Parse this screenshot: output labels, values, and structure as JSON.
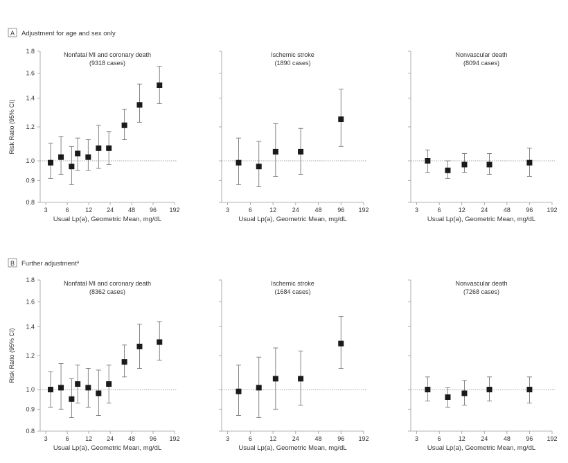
{
  "colors": {
    "marker": "#1a1a1a",
    "axis": "#9a9a9a",
    "errorbar": "#777777",
    "text": "#333333",
    "refline": "#888888"
  },
  "figure": {
    "y_axis_label": "Risk Ratio (95% CI)",
    "x_axis_label": "Usual Lp(a), Geometric Mean, mg/dL",
    "y_ticks": [
      "1.8",
      "1.6",
      "1.4",
      "1.2",
      "1.0",
      "0.9",
      "0.8"
    ],
    "x_ticks": [
      "3",
      "6",
      "12",
      "24",
      "48",
      "96",
      "192"
    ]
  },
  "chart_data": [
    {
      "type": "scatter",
      "panel_letter": "A",
      "panel_title": "Adjustment for age and sex only",
      "title": "Nonfatal MI and coronary death",
      "subtitle": "(9318 cases)",
      "x_scale": "log2",
      "y_scale": "log",
      "xlim": [
        2.5,
        192
      ],
      "ylim": [
        0.8,
        1.8
      ],
      "reference_y": 1.0,
      "points": [
        {
          "x": 3.5,
          "y": 0.99,
          "lo": 0.91,
          "hi": 1.1
        },
        {
          "x": 4.9,
          "y": 1.02,
          "lo": 0.93,
          "hi": 1.14
        },
        {
          "x": 6.9,
          "y": 0.97,
          "lo": 0.88,
          "hi": 1.08
        },
        {
          "x": 8.4,
          "y": 1.04,
          "lo": 0.95,
          "hi": 1.13
        },
        {
          "x": 11.8,
          "y": 1.02,
          "lo": 0.95,
          "hi": 1.12
        },
        {
          "x": 16.5,
          "y": 1.07,
          "lo": 0.96,
          "hi": 1.21
        },
        {
          "x": 23.0,
          "y": 1.07,
          "lo": 0.98,
          "hi": 1.17
        },
        {
          "x": 38.0,
          "y": 1.21,
          "lo": 1.12,
          "hi": 1.32
        },
        {
          "x": 62.0,
          "y": 1.35,
          "lo": 1.23,
          "hi": 1.51
        },
        {
          "x": 118.0,
          "y": 1.5,
          "lo": 1.36,
          "hi": 1.66
        }
      ]
    },
    {
      "type": "scatter",
      "panel_letter": "A",
      "title": "Ischemic stroke",
      "subtitle": "(1890 cases)",
      "x_scale": "log2",
      "y_scale": "log",
      "xlim": [
        2.5,
        192
      ],
      "ylim": [
        0.8,
        1.8
      ],
      "reference_y": 1.0,
      "points": [
        {
          "x": 4.2,
          "y": 0.99,
          "lo": 0.88,
          "hi": 1.13
        },
        {
          "x": 7.8,
          "y": 0.97,
          "lo": 0.87,
          "hi": 1.11
        },
        {
          "x": 13.0,
          "y": 1.05,
          "lo": 0.92,
          "hi": 1.22
        },
        {
          "x": 28.0,
          "y": 1.05,
          "lo": 0.93,
          "hi": 1.19
        },
        {
          "x": 96.0,
          "y": 1.25,
          "lo": 1.08,
          "hi": 1.47
        }
      ]
    },
    {
      "type": "scatter",
      "panel_letter": "A",
      "title": "Nonvascular death",
      "subtitle": "(8094 cases)",
      "x_scale": "log2",
      "y_scale": "log",
      "xlim": [
        2.5,
        192
      ],
      "ylim": [
        0.8,
        1.8
      ],
      "reference_y": 1.0,
      "points": [
        {
          "x": 4.2,
          "y": 1.0,
          "lo": 0.94,
          "hi": 1.06
        },
        {
          "x": 7.8,
          "y": 0.95,
          "lo": 0.91,
          "hi": 1.0
        },
        {
          "x": 13.0,
          "y": 0.98,
          "lo": 0.94,
          "hi": 1.04
        },
        {
          "x": 28.0,
          "y": 0.98,
          "lo": 0.93,
          "hi": 1.04
        },
        {
          "x": 96.0,
          "y": 0.99,
          "lo": 0.92,
          "hi": 1.07
        }
      ]
    },
    {
      "type": "scatter",
      "panel_letter": "B",
      "panel_title": "Further adjustment",
      "title": "Nonfatal MI and coronary death",
      "subtitle": "(8362 cases)",
      "x_scale": "log2",
      "y_scale": "log",
      "xlim": [
        2.5,
        192
      ],
      "ylim": [
        0.8,
        1.8
      ],
      "reference_y": 1.0,
      "points": [
        {
          "x": 3.5,
          "y": 1.0,
          "lo": 0.91,
          "hi": 1.1
        },
        {
          "x": 4.9,
          "y": 1.01,
          "lo": 0.9,
          "hi": 1.15
        },
        {
          "x": 6.9,
          "y": 0.95,
          "lo": 0.86,
          "hi": 1.06
        },
        {
          "x": 8.4,
          "y": 1.03,
          "lo": 0.93,
          "hi": 1.14
        },
        {
          "x": 11.8,
          "y": 1.01,
          "lo": 0.91,
          "hi": 1.12
        },
        {
          "x": 16.5,
          "y": 0.98,
          "lo": 0.87,
          "hi": 1.11
        },
        {
          "x": 23.0,
          "y": 1.03,
          "lo": 0.93,
          "hi": 1.14
        },
        {
          "x": 38.0,
          "y": 1.16,
          "lo": 1.07,
          "hi": 1.27
        },
        {
          "x": 62.0,
          "y": 1.26,
          "lo": 1.12,
          "hi": 1.42
        },
        {
          "x": 118.0,
          "y": 1.29,
          "lo": 1.17,
          "hi": 1.44
        }
      ]
    },
    {
      "type": "scatter",
      "panel_letter": "B",
      "title": "Ischemic stroke",
      "subtitle": "(1684 cases)",
      "x_scale": "log2",
      "y_scale": "log",
      "xlim": [
        2.5,
        192
      ],
      "ylim": [
        0.8,
        1.8
      ],
      "reference_y": 1.0,
      "points": [
        {
          "x": 4.2,
          "y": 0.99,
          "lo": 0.87,
          "hi": 1.14
        },
        {
          "x": 7.8,
          "y": 1.01,
          "lo": 0.86,
          "hi": 1.19
        },
        {
          "x": 13.0,
          "y": 1.06,
          "lo": 0.9,
          "hi": 1.25
        },
        {
          "x": 28.0,
          "y": 1.06,
          "lo": 0.92,
          "hi": 1.23
        },
        {
          "x": 96.0,
          "y": 1.28,
          "lo": 1.12,
          "hi": 1.48
        }
      ]
    },
    {
      "type": "scatter",
      "panel_letter": "B",
      "title": "Nonvascular death",
      "subtitle": "(7268 cases)",
      "x_scale": "log2",
      "y_scale": "log",
      "xlim": [
        2.5,
        192
      ],
      "ylim": [
        0.8,
        1.8
      ],
      "reference_y": 1.0,
      "points": [
        {
          "x": 4.2,
          "y": 1.0,
          "lo": 0.94,
          "hi": 1.07
        },
        {
          "x": 7.8,
          "y": 0.96,
          "lo": 0.91,
          "hi": 1.01
        },
        {
          "x": 13.0,
          "y": 0.98,
          "lo": 0.92,
          "hi": 1.05
        },
        {
          "x": 28.0,
          "y": 1.0,
          "lo": 0.94,
          "hi": 1.07
        },
        {
          "x": 96.0,
          "y": 1.0,
          "lo": 0.93,
          "hi": 1.07
        }
      ]
    }
  ]
}
